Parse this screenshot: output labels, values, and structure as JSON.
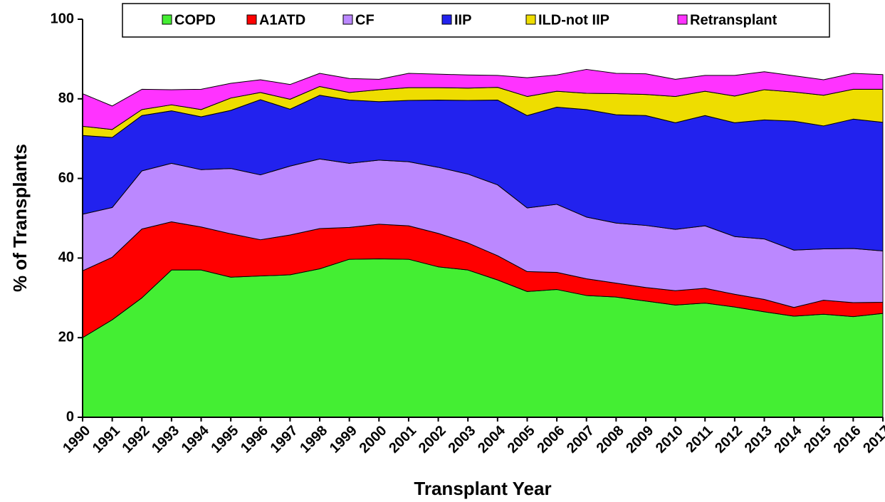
{
  "chart_data": {
    "type": "stacked_area",
    "xlabel": "Transplant Year",
    "ylabel": "% of Transplants",
    "categories": [
      "1990",
      "1991",
      "1992",
      "1993",
      "1994",
      "1995",
      "1996",
      "1997",
      "1998",
      "1999",
      "2000",
      "2001",
      "2002",
      "2003",
      "2004",
      "2005",
      "2006",
      "2007",
      "2008",
      "2009",
      "2010",
      "2011",
      "2012",
      "2013",
      "2014",
      "2015",
      "2016",
      "2017"
    ],
    "series": [
      {
        "name": "COPD",
        "color": "#44ee33",
        "values": [
          20,
          24.5,
          30,
          37,
          37,
          35.2,
          35.5,
          35.8,
          37.3,
          39.7,
          39.8,
          39.7,
          37.8,
          37,
          34.5,
          31.6,
          32.1,
          30.6,
          30.2,
          29.2,
          28.2,
          28.7,
          27.7,
          26.5,
          25.4,
          25.9,
          25.3,
          26.1
        ]
      },
      {
        "name": "A1ATD",
        "color": "#ff0000",
        "values": [
          16.8,
          15.7,
          17.3,
          12.1,
          10.8,
          10.9,
          9.1,
          10.0,
          10.1,
          8.0,
          8.7,
          8.4,
          8.4,
          6.8,
          6.1,
          5.0,
          4.3,
          4.2,
          3.5,
          3.4,
          3.6,
          3.7,
          3.2,
          3.1,
          2.2,
          3.5,
          3.5,
          2.8
        ]
      },
      {
        "name": "CF",
        "color": "#bb88ff",
        "values": [
          14.2,
          12.5,
          14.6,
          14.7,
          14.4,
          16.4,
          16.3,
          17.3,
          17.5,
          16.1,
          16.1,
          16.1,
          16.6,
          17.3,
          17.8,
          16.0,
          17.1,
          15.5,
          15.1,
          15.6,
          15.4,
          15.7,
          14.5,
          15.2,
          14.4,
          12.9,
          13.6,
          12.9
        ]
      },
      {
        "name": "IIP",
        "color": "#2222ee",
        "values": [
          19.8,
          17.6,
          13.9,
          13.2,
          13.3,
          14.6,
          18.9,
          14.3,
          16.0,
          15.9,
          14.7,
          15.4,
          16.9,
          18.5,
          21.3,
          23.2,
          24.4,
          27.0,
          27.2,
          27.6,
          26.8,
          27.7,
          28.6,
          29.9,
          32.4,
          30.9,
          32.5,
          32.3
        ]
      },
      {
        "name": "ILD-not IIP",
        "color": "#eedd00",
        "values": [
          2.3,
          2.0,
          1.5,
          1.5,
          1.8,
          3.1,
          1.8,
          2.5,
          2.2,
          1.9,
          3.0,
          3.2,
          3.1,
          3.1,
          3.2,
          4.8,
          4.0,
          4.1,
          5.3,
          5.3,
          6.6,
          6.1,
          6.7,
          7.6,
          7.3,
          7.7,
          7.5,
          8.3
        ]
      },
      {
        "name": "Retransplant",
        "color": "#ff33ff",
        "values": [
          8.2,
          5.9,
          5.1,
          3.8,
          5.1,
          3.7,
          3.2,
          3.7,
          3.3,
          3.5,
          2.6,
          3.6,
          3.4,
          3.3,
          3.0,
          4.7,
          4.1,
          6.0,
          5.1,
          5.2,
          4.3,
          4.0,
          5.2,
          4.5,
          4.1,
          3.9,
          4.0,
          3.7
        ]
      }
    ],
    "ylim": [
      0,
      100
    ],
    "yticks": [
      0,
      20,
      40,
      60,
      80,
      100
    ],
    "legend": "top"
  }
}
